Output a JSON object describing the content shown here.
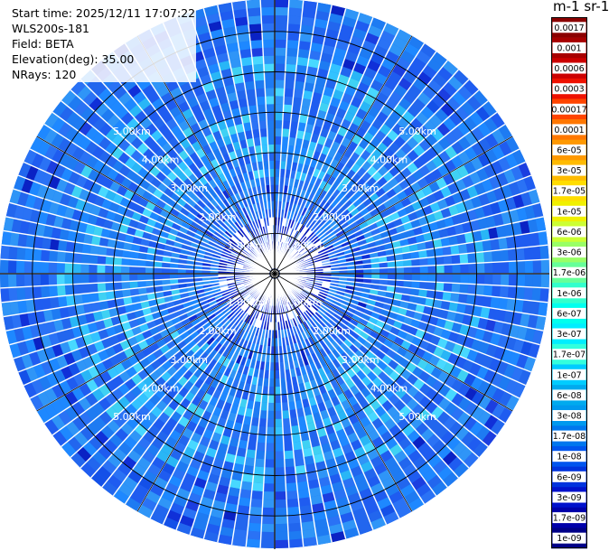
{
  "info": {
    "start_time": "Start time: 2025/12/11 17:07:22",
    "instrument": "WLS200s-181",
    "field": "Field: BETA",
    "elevation": "Elevation(deg): 35.00",
    "nrays": "NRays: 120"
  },
  "colorbar": {
    "title": "m-1 sr-1",
    "ticks": [
      "0.0017",
      "0.001",
      "0.0006",
      "0.0003",
      "0.00017",
      "0.0001",
      "6e-05",
      "3e-05",
      "1.7e-05",
      "1e-05",
      "6e-06",
      "3e-06",
      "1.7e-06",
      "1e-06",
      "6e-07",
      "3e-07",
      "1.7e-07",
      "1e-07",
      "6e-08",
      "3e-08",
      "1.7e-08",
      "1e-08",
      "6e-09",
      "3e-09",
      "1.7e-09",
      "1e-09"
    ],
    "colors": [
      "#8B0000",
      "#A80000",
      "#CC0000",
      "#EE1100",
      "#FF4400",
      "#FF7700",
      "#FF9900",
      "#FFBB00",
      "#FFDD00",
      "#F0F000",
      "#CCFF33",
      "#99FF66",
      "#66FF99",
      "#33FFCC",
      "#00FFEE",
      "#00EEFF",
      "#33FFDD",
      "#00CCFF",
      "#00AAEE",
      "#0099EE",
      "#0077EE",
      "#0055EE",
      "#0033DD",
      "#0011CC",
      "#0000AA",
      "#000088"
    ]
  },
  "chart_data": {
    "type": "ppi",
    "field": "BETA",
    "units": "m-1 sr-1",
    "elevation_deg": 35.0,
    "n_rays": 120,
    "range_rings_km": [
      1,
      2,
      3,
      4,
      5
    ],
    "range_labels": [
      "1.00km",
      "2.00km",
      "3.00km",
      "4.00km",
      "5.00km"
    ],
    "max_range_km": 6.8,
    "value_range": [
      1e-09,
      0.0017
    ],
    "scale": "log"
  }
}
